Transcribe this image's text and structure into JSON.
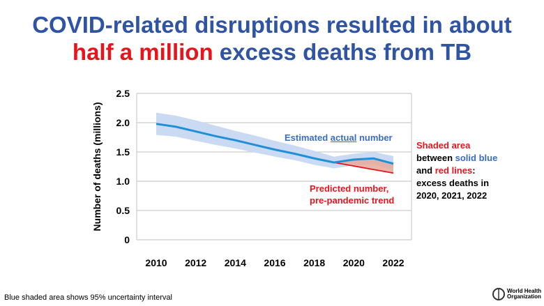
{
  "title": {
    "line1": "COVID-related disruptions resulted in about",
    "line2_highlight": "half a million",
    "line2_rest": " excess deaths from TB"
  },
  "chart_data": {
    "type": "line",
    "ylabel": "Number of deaths (millions)",
    "xlabel": "",
    "ylim": [
      0,
      2.5
    ],
    "xlim": [
      2010,
      2022
    ],
    "xticks": [
      2010,
      2012,
      2014,
      2016,
      2018,
      2020,
      2022
    ],
    "yticks": [
      {
        "v": 0,
        "label": "0"
      },
      {
        "v": 0.5,
        "label": "0.5"
      },
      {
        "v": 1,
        "label": "1.0"
      },
      {
        "v": 1.5,
        "label": "1.5"
      },
      {
        "v": 2,
        "label": "2.0"
      },
      {
        "v": 2.5,
        "label": "2.5"
      }
    ],
    "grid": true,
    "series": [
      {
        "name": "Estimated actual number",
        "color": "#1f8fd6",
        "x": [
          2010,
          2011,
          2012,
          2013,
          2014,
          2015,
          2016,
          2017,
          2018,
          2019,
          2020,
          2021,
          2022
        ],
        "y": [
          1.98,
          1.93,
          1.85,
          1.77,
          1.7,
          1.62,
          1.54,
          1.47,
          1.39,
          1.32,
          1.37,
          1.39,
          1.3
        ],
        "ci_lower": [
          1.79,
          1.76,
          1.69,
          1.62,
          1.56,
          1.49,
          1.42,
          1.36,
          1.28,
          1.22,
          1.27,
          1.29,
          1.19
        ],
        "ci_upper": [
          2.17,
          2.12,
          2.04,
          1.95,
          1.86,
          1.78,
          1.69,
          1.61,
          1.52,
          1.42,
          1.47,
          1.5,
          1.43
        ]
      },
      {
        "name": "Predicted number, pre-pandemic trend",
        "color": "#e8141b",
        "x": [
          2019,
          2020,
          2021,
          2022
        ],
        "y": [
          1.32,
          1.26,
          1.2,
          1.14
        ]
      }
    ],
    "annotations": {
      "actual_pre": "Estimated ",
      "actual_u": "actual",
      "actual_post": " number",
      "pred1": "Predicted number,",
      "pred2": "pre-pandemic trend"
    }
  },
  "side_note": {
    "l1": "Shaded area",
    "l2a": "between ",
    "l2b": "solid blue",
    "l3a": "and ",
    "l3b": "red lines",
    ":": ":",
    "l4": "excess deaths in",
    "l5": "2020, 2021, 2022"
  },
  "footnote": "Blue shaded area shows 95% uncertainty interval",
  "logo": {
    "l1": "World Health",
    "l2": "Organization"
  }
}
